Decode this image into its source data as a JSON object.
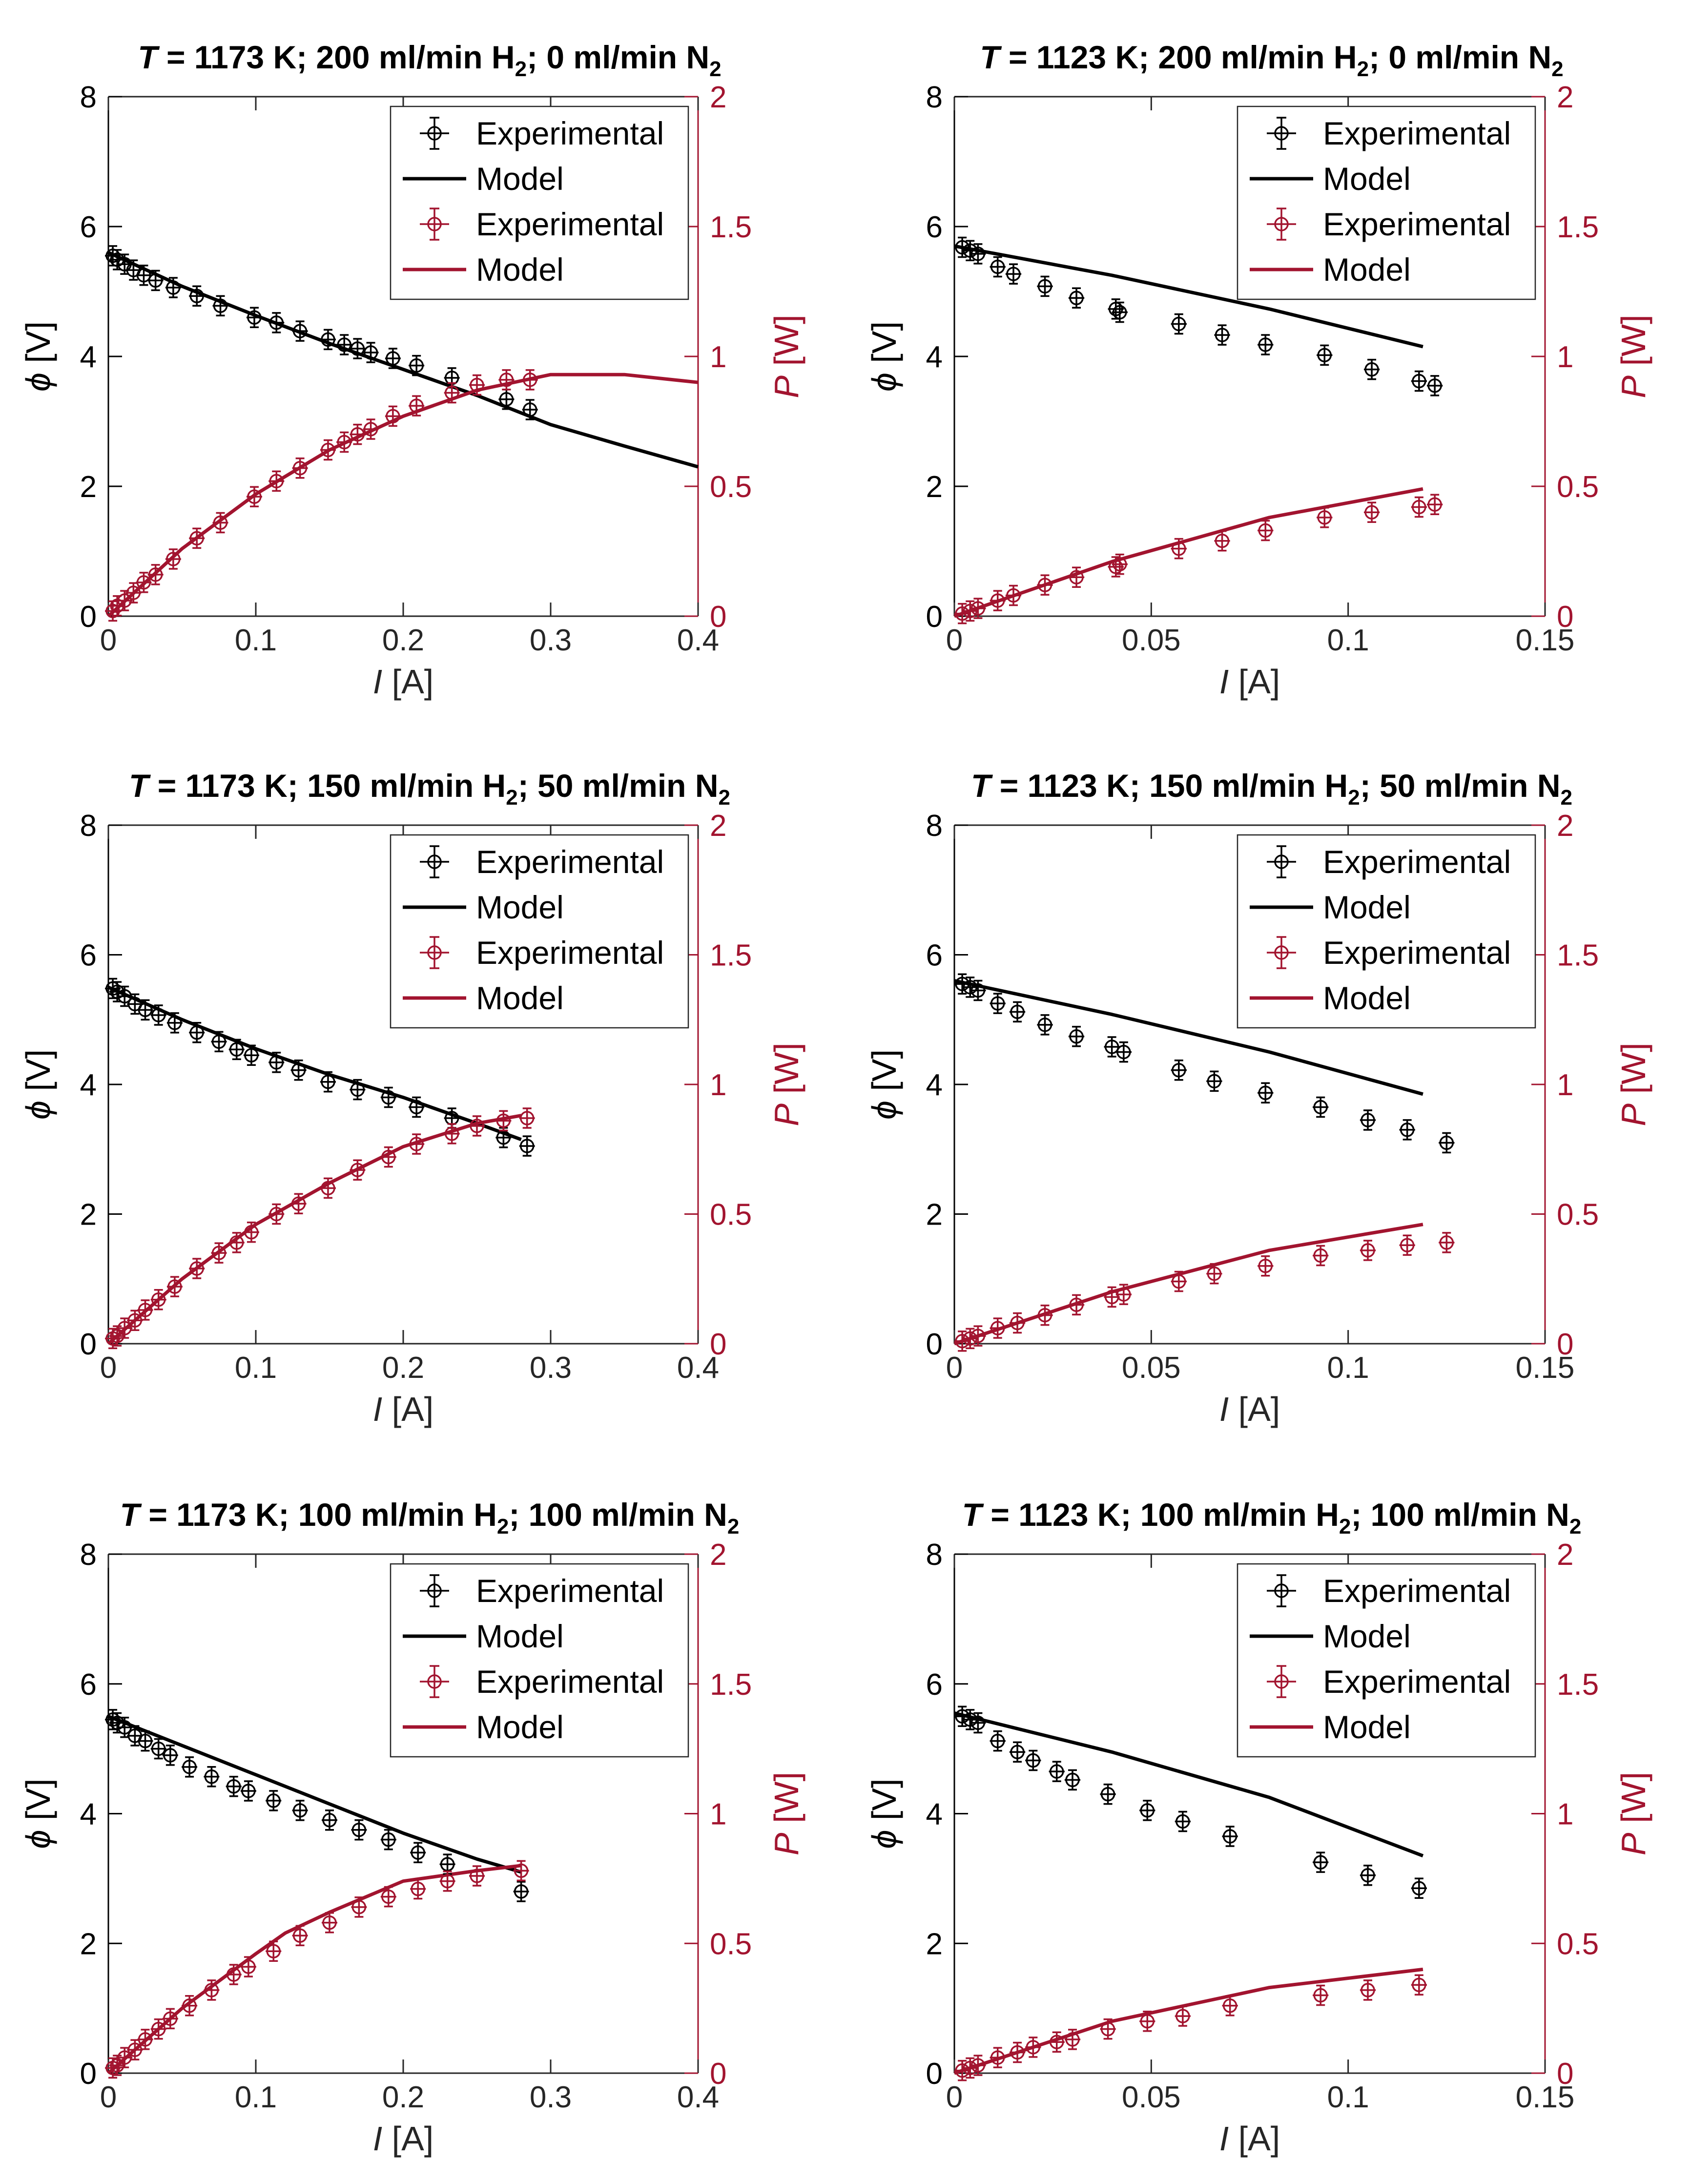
{
  "colors": {
    "black": "#000000",
    "red": "#A2142F",
    "axis": "#262626"
  },
  "legend": {
    "entries": [
      {
        "label": "Experimental",
        "kind": "err",
        "color": "black"
      },
      {
        "label": "Model",
        "kind": "line",
        "color": "black"
      },
      {
        "label": "Experimental",
        "kind": "err",
        "color": "red"
      },
      {
        "label": "Model",
        "kind": "line",
        "color": "red"
      }
    ]
  },
  "chart_data": [
    {
      "type": "line",
      "title": {
        "T": "T",
        "rest": " = 1173 K; 200 ml/min H",
        "sub1": "2",
        "rest2": "; 0 ml/min N",
        "sub2": "2"
      },
      "xlabel": {
        "sym": "I",
        "unit": " [A]"
      },
      "ylabel_left": {
        "sym": "ϕ",
        "unit": " [V]"
      },
      "ylabel_right": {
        "sym": "P",
        "unit": " [W]"
      },
      "xlim": [
        0,
        0.4
      ],
      "ylim_left": [
        0,
        8
      ],
      "ylim_right": [
        0,
        2
      ],
      "xticks": [
        0,
        0.1,
        0.2,
        0.3,
        0.4
      ],
      "xtick_labels": [
        "0",
        "0.1",
        "0.2",
        "0.3",
        "0.4"
      ],
      "yticks_left": [
        0,
        2,
        4,
        6,
        8
      ],
      "ytick_labels_left": [
        "0",
        "2",
        "4",
        "6",
        "8"
      ],
      "yticks_right": [
        0,
        0.5,
        1,
        1.5,
        2
      ],
      "ytick_labels_right": [
        "0",
        "0.5",
        "1",
        "1.5",
        "2"
      ],
      "voltage_exp": {
        "x": [
          0.003,
          0.006,
          0.011,
          0.017,
          0.024,
          0.032,
          0.044,
          0.06,
          0.076,
          0.099,
          0.114,
          0.13,
          0.149,
          0.16,
          0.169,
          0.178,
          0.193,
          0.209,
          0.233,
          0.27,
          0.286
        ],
        "y": [
          5.55,
          5.49,
          5.42,
          5.33,
          5.25,
          5.17,
          5.06,
          4.93,
          4.78,
          4.6,
          4.52,
          4.39,
          4.26,
          4.18,
          4.12,
          4.06,
          3.97,
          3.86,
          3.67,
          3.34,
          3.18
        ]
      },
      "voltage_model": {
        "x": [
          0,
          0.05,
          0.1,
          0.15,
          0.2,
          0.25,
          0.3,
          0.35,
          0.4
        ],
        "y": [
          5.6,
          5.08,
          4.63,
          4.2,
          3.8,
          3.4,
          2.95,
          2.62,
          2.3
        ]
      },
      "power_exp": {
        "x": [
          0.003,
          0.006,
          0.011,
          0.017,
          0.024,
          0.032,
          0.044,
          0.06,
          0.076,
          0.099,
          0.114,
          0.13,
          0.149,
          0.16,
          0.169,
          0.178,
          0.193,
          0.209,
          0.233,
          0.25,
          0.27,
          0.286
        ],
        "y": [
          0.02,
          0.04,
          0.06,
          0.09,
          0.13,
          0.16,
          0.22,
          0.3,
          0.36,
          0.46,
          0.52,
          0.57,
          0.64,
          0.67,
          0.7,
          0.72,
          0.77,
          0.81,
          0.86,
          0.89,
          0.91,
          0.91
        ]
      },
      "power_model": {
        "x": [
          0,
          0.05,
          0.1,
          0.15,
          0.2,
          0.25,
          0.3,
          0.35,
          0.4
        ],
        "y": [
          0,
          0.26,
          0.47,
          0.64,
          0.77,
          0.87,
          0.93,
          0.93,
          0.9
        ]
      }
    },
    {
      "type": "line",
      "title": {
        "T": "T",
        "rest": " = 1123 K; 200 ml/min H",
        "sub1": "2",
        "rest2": "; 0 ml/min N",
        "sub2": "2"
      },
      "xlabel": {
        "sym": "I",
        "unit": " [A]"
      },
      "ylabel_left": {
        "sym": "ϕ",
        "unit": " [V]"
      },
      "ylabel_right": {
        "sym": "P",
        "unit": " [W]"
      },
      "xlim": [
        0,
        0.15
      ],
      "ylim_left": [
        0,
        8
      ],
      "ylim_right": [
        0,
        2
      ],
      "xticks": [
        0,
        0.05,
        0.1,
        0.15
      ],
      "xtick_labels": [
        "0",
        "0.05",
        "0.1",
        "0.15"
      ],
      "yticks_left": [
        0,
        2,
        4,
        6,
        8
      ],
      "ytick_labels_left": [
        "0",
        "2",
        "4",
        "6",
        "8"
      ],
      "yticks_right": [
        0,
        0.5,
        1,
        1.5,
        2
      ],
      "ytick_labels_right": [
        "0",
        "0.5",
        "1",
        "1.5",
        "2"
      ],
      "voltage_exp": {
        "x": [
          0.002,
          0.004,
          0.006,
          0.011,
          0.015,
          0.023,
          0.031,
          0.041,
          0.042,
          0.057,
          0.068,
          0.079,
          0.094,
          0.106,
          0.118,
          0.122
        ],
        "y": [
          5.68,
          5.63,
          5.58,
          5.38,
          5.27,
          5.08,
          4.9,
          4.73,
          4.68,
          4.5,
          4.33,
          4.18,
          4.02,
          3.8,
          3.62,
          3.55
        ]
      },
      "voltage_model": {
        "x": [
          0,
          0.04,
          0.08,
          0.119
        ],
        "y": [
          5.7,
          5.25,
          4.73,
          4.15
        ]
      },
      "power_exp": {
        "x": [
          0.002,
          0.004,
          0.006,
          0.011,
          0.015,
          0.023,
          0.031,
          0.041,
          0.042,
          0.057,
          0.068,
          0.079,
          0.094,
          0.106,
          0.118,
          0.122
        ],
        "y": [
          0.01,
          0.02,
          0.03,
          0.06,
          0.08,
          0.12,
          0.15,
          0.19,
          0.2,
          0.26,
          0.29,
          0.33,
          0.38,
          0.4,
          0.42,
          0.43
        ]
      },
      "power_model": {
        "x": [
          0,
          0.04,
          0.08,
          0.119
        ],
        "y": [
          0,
          0.21,
          0.38,
          0.49
        ]
      }
    },
    {
      "type": "line",
      "title": {
        "T": "T",
        "rest": " = 1173 K; 150 ml/min H",
        "sub1": "2",
        "rest2": "; 50 ml/min N",
        "sub2": "2"
      },
      "xlabel": {
        "sym": "I",
        "unit": " [A]"
      },
      "ylabel_left": {
        "sym": "ϕ",
        "unit": " [V]"
      },
      "ylabel_right": {
        "sym": "P",
        "unit": " [W]"
      },
      "xlim": [
        0,
        0.4
      ],
      "ylim_left": [
        0,
        8
      ],
      "ylim_right": [
        0,
        2
      ],
      "xticks": [
        0,
        0.1,
        0.2,
        0.3,
        0.4
      ],
      "xtick_labels": [
        "0",
        "0.1",
        "0.2",
        "0.3",
        "0.4"
      ],
      "yticks_left": [
        0,
        2,
        4,
        6,
        8
      ],
      "ytick_labels_left": [
        "0",
        "2",
        "4",
        "6",
        "8"
      ],
      "yticks_right": [
        0,
        0.5,
        1,
        1.5,
        2
      ],
      "ytick_labels_right": [
        "0",
        "0.5",
        "1",
        "1.5",
        "2"
      ],
      "voltage_exp": {
        "x": [
          0.003,
          0.006,
          0.011,
          0.018,
          0.025,
          0.034,
          0.045,
          0.06,
          0.075,
          0.087,
          0.097,
          0.114,
          0.129,
          0.149,
          0.169,
          0.19,
          0.209,
          0.233,
          0.268,
          0.284
        ],
        "y": [
          5.48,
          5.43,
          5.36,
          5.24,
          5.15,
          5.07,
          4.95,
          4.8,
          4.66,
          4.54,
          4.45,
          4.34,
          4.22,
          4.04,
          3.92,
          3.8,
          3.65,
          3.48,
          3.18,
          3.05
        ]
      },
      "voltage_model": {
        "x": [
          0,
          0.05,
          0.1,
          0.15,
          0.2,
          0.25,
          0.28
        ],
        "y": [
          5.5,
          5.0,
          4.55,
          4.15,
          3.8,
          3.4,
          3.15
        ]
      },
      "power_exp": {
        "x": [
          0.003,
          0.006,
          0.011,
          0.018,
          0.025,
          0.034,
          0.045,
          0.06,
          0.075,
          0.087,
          0.097,
          0.114,
          0.129,
          0.149,
          0.169,
          0.19,
          0.209,
          0.233,
          0.25,
          0.268,
          0.284
        ],
        "y": [
          0.02,
          0.03,
          0.06,
          0.09,
          0.13,
          0.17,
          0.22,
          0.29,
          0.35,
          0.39,
          0.43,
          0.5,
          0.54,
          0.6,
          0.67,
          0.72,
          0.77,
          0.81,
          0.84,
          0.86,
          0.87
        ]
      },
      "power_model": {
        "x": [
          0,
          0.05,
          0.1,
          0.15,
          0.2,
          0.25,
          0.28
        ],
        "y": [
          0,
          0.25,
          0.46,
          0.62,
          0.76,
          0.85,
          0.88
        ]
      }
    },
    {
      "type": "line",
      "title": {
        "T": "T",
        "rest": " = 1123 K; 150 ml/min H",
        "sub1": "2",
        "rest2": "; 50 ml/min N",
        "sub2": "2"
      },
      "xlabel": {
        "sym": "I",
        "unit": " [A]"
      },
      "ylabel_left": {
        "sym": "ϕ",
        "unit": " [V]"
      },
      "ylabel_right": {
        "sym": "P",
        "unit": " [W]"
      },
      "xlim": [
        0,
        0.15
      ],
      "ylim_left": [
        0,
        8
      ],
      "ylim_right": [
        0,
        2
      ],
      "xticks": [
        0,
        0.05,
        0.1,
        0.15
      ],
      "xtick_labels": [
        "0",
        "0.05",
        "0.1",
        "0.15"
      ],
      "yticks_left": [
        0,
        2,
        4,
        6,
        8
      ],
      "ytick_labels_left": [
        "0",
        "2",
        "4",
        "6",
        "8"
      ],
      "yticks_right": [
        0,
        0.5,
        1,
        1.5,
        2
      ],
      "ytick_labels_right": [
        "0",
        "0.5",
        "1",
        "1.5",
        "2"
      ],
      "voltage_exp": {
        "x": [
          0.002,
          0.004,
          0.006,
          0.011,
          0.016,
          0.023,
          0.031,
          0.04,
          0.043,
          0.057,
          0.066,
          0.079,
          0.093,
          0.105,
          0.115,
          0.125
        ],
        "y": [
          5.55,
          5.5,
          5.45,
          5.25,
          5.12,
          4.92,
          4.74,
          4.58,
          4.5,
          4.22,
          4.05,
          3.87,
          3.65,
          3.45,
          3.3,
          3.1
        ]
      },
      "voltage_model": {
        "x": [
          0,
          0.04,
          0.08,
          0.119
        ],
        "y": [
          5.6,
          5.08,
          4.5,
          3.85
        ]
      },
      "power_exp": {
        "x": [
          0.002,
          0.004,
          0.006,
          0.011,
          0.016,
          0.023,
          0.031,
          0.04,
          0.043,
          0.057,
          0.066,
          0.079,
          0.093,
          0.105,
          0.115,
          0.125
        ],
        "y": [
          0.01,
          0.02,
          0.03,
          0.06,
          0.08,
          0.11,
          0.15,
          0.18,
          0.19,
          0.24,
          0.27,
          0.3,
          0.34,
          0.36,
          0.38,
          0.39
        ]
      },
      "power_model": {
        "x": [
          0,
          0.04,
          0.08,
          0.119
        ],
        "y": [
          0,
          0.2,
          0.36,
          0.46
        ]
      }
    },
    {
      "type": "line",
      "title": {
        "T": "T",
        "rest": " = 1173 K; 100 ml/min H",
        "sub1": "2",
        "rest2": "; 100 ml/min N",
        "sub2": "2"
      },
      "xlabel": {
        "sym": "I",
        "unit": " [A]"
      },
      "ylabel_left": {
        "sym": "ϕ",
        "unit": " [V]"
      },
      "ylabel_right": {
        "sym": "P",
        "unit": " [W]"
      },
      "xlim": [
        0,
        0.4
      ],
      "ylim_left": [
        0,
        8
      ],
      "ylim_right": [
        0,
        2
      ],
      "xticks": [
        0,
        0.1,
        0.2,
        0.3,
        0.4
      ],
      "xtick_labels": [
        "0",
        "0.1",
        "0.2",
        "0.3",
        "0.4"
      ],
      "yticks_left": [
        0,
        2,
        4,
        6,
        8
      ],
      "ytick_labels_left": [
        "0",
        "2",
        "4",
        "6",
        "8"
      ],
      "yticks_right": [
        0,
        0.5,
        1,
        1.5,
        2
      ],
      "ytick_labels_right": [
        "0",
        "0.5",
        "1",
        "1.5",
        "2"
      ],
      "voltage_exp": {
        "x": [
          0.003,
          0.006,
          0.011,
          0.018,
          0.025,
          0.034,
          0.042,
          0.055,
          0.07,
          0.085,
          0.095,
          0.112,
          0.13,
          0.15,
          0.17,
          0.19,
          0.21,
          0.23,
          0.28
        ],
        "y": [
          5.45,
          5.4,
          5.33,
          5.2,
          5.12,
          5.0,
          4.9,
          4.72,
          4.57,
          4.42,
          4.35,
          4.2,
          4.05,
          3.9,
          3.75,
          3.6,
          3.4,
          3.22,
          2.8
        ]
      },
      "voltage_model": {
        "x": [
          0,
          0.05,
          0.1,
          0.15,
          0.2,
          0.25,
          0.28
        ],
        "y": [
          5.5,
          5.05,
          4.6,
          4.15,
          3.7,
          3.3,
          3.1
        ]
      },
      "power_exp": {
        "x": [
          0.003,
          0.006,
          0.011,
          0.018,
          0.025,
          0.034,
          0.042,
          0.055,
          0.07,
          0.085,
          0.095,
          0.112,
          0.13,
          0.15,
          0.17,
          0.19,
          0.21,
          0.23,
          0.25,
          0.28
        ],
        "y": [
          0.02,
          0.03,
          0.06,
          0.09,
          0.13,
          0.17,
          0.21,
          0.26,
          0.32,
          0.38,
          0.41,
          0.47,
          0.53,
          0.58,
          0.64,
          0.68,
          0.71,
          0.74,
          0.76,
          0.78
        ]
      },
      "power_model": {
        "x": [
          0,
          0.05,
          0.1,
          0.12,
          0.15,
          0.2,
          0.25,
          0.28
        ],
        "y": [
          0,
          0.25,
          0.46,
          0.54,
          0.62,
          0.74,
          0.78,
          0.8
        ]
      }
    },
    {
      "type": "line",
      "title": {
        "T": "T",
        "rest": " = 1123 K; 100 ml/min H",
        "sub1": "2",
        "rest2": "; 100 ml/min N",
        "sub2": "2"
      },
      "xlabel": {
        "sym": "I",
        "unit": " [A]"
      },
      "ylabel_left": {
        "sym": "ϕ",
        "unit": " [V]"
      },
      "ylabel_right": {
        "sym": "P",
        "unit": " [W]"
      },
      "xlim": [
        0,
        0.15
      ],
      "ylim_left": [
        0,
        8
      ],
      "ylim_right": [
        0,
        2
      ],
      "xticks": [
        0,
        0.05,
        0.1,
        0.15
      ],
      "xtick_labels": [
        "0",
        "0.05",
        "0.1",
        "0.15"
      ],
      "yticks_left": [
        0,
        2,
        4,
        6,
        8
      ],
      "ytick_labels_left": [
        "0",
        "2",
        "4",
        "6",
        "8"
      ],
      "yticks_right": [
        0,
        0.5,
        1,
        1.5,
        2
      ],
      "ytick_labels_right": [
        "0",
        "0.5",
        "1",
        "1.5",
        "2"
      ],
      "voltage_exp": {
        "x": [
          0.002,
          0.004,
          0.006,
          0.011,
          0.016,
          0.02,
          0.026,
          0.03,
          0.039,
          0.049,
          0.058,
          0.07,
          0.093,
          0.105,
          0.118
        ],
        "y": [
          5.5,
          5.45,
          5.4,
          5.12,
          4.95,
          4.82,
          4.65,
          4.52,
          4.3,
          4.05,
          3.88,
          3.65,
          3.25,
          3.05,
          2.85
        ]
      },
      "voltage_model": {
        "x": [
          0,
          0.04,
          0.08,
          0.119
        ],
        "y": [
          5.55,
          4.95,
          4.25,
          3.35
        ]
      },
      "power_exp": {
        "x": [
          0.002,
          0.004,
          0.006,
          0.011,
          0.016,
          0.02,
          0.026,
          0.03,
          0.039,
          0.049,
          0.058,
          0.07,
          0.093,
          0.105,
          0.118
        ],
        "y": [
          0.01,
          0.02,
          0.03,
          0.06,
          0.08,
          0.1,
          0.12,
          0.13,
          0.17,
          0.2,
          0.22,
          0.26,
          0.3,
          0.32,
          0.34
        ]
      },
      "power_model": {
        "x": [
          0,
          0.04,
          0.08,
          0.119
        ],
        "y": [
          0,
          0.2,
          0.33,
          0.4
        ]
      }
    }
  ]
}
